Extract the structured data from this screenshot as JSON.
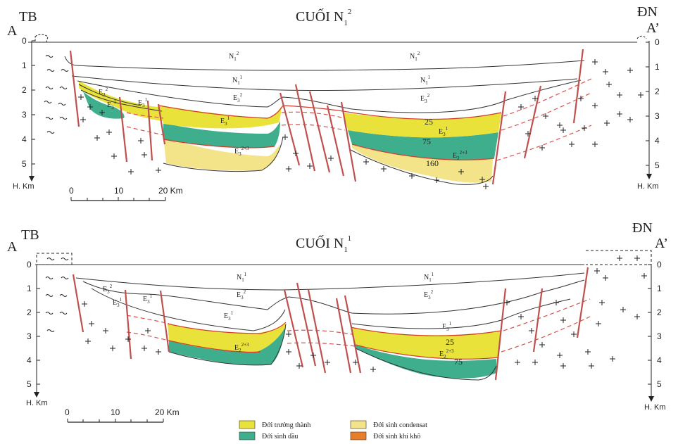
{
  "sections": [
    {
      "title_main": "CUỐI N",
      "title_sub": "1",
      "title_sup": "2",
      "left_letter": "A",
      "left_dir": "TB",
      "right_letter": "A’",
      "right_dir": "ĐN",
      "depth_ticks": [
        "0",
        "1",
        "2",
        "3",
        "4",
        "5"
      ],
      "depth_unit": "H. Km",
      "scale_labels": [
        "0",
        "10",
        "20 Km"
      ],
      "layers": [
        {
          "base": "N",
          "sub": "1",
          "sup": "2"
        },
        {
          "base": "N",
          "sub": "1",
          "sup": "2"
        },
        {
          "base": "N",
          "sub": "1",
          "sup": "1"
        },
        {
          "base": "N",
          "sub": "1",
          "sup": "1"
        },
        {
          "base": "E",
          "sub": "3",
          "sup": "2"
        },
        {
          "base": "E",
          "sub": "3",
          "sup": "2"
        },
        {
          "base": "E",
          "sub": "3",
          "sup": "2"
        },
        {
          "base": "E",
          "sub": "3",
          "sup": "1"
        },
        {
          "base": "E",
          "sub": "3",
          "sup": "1"
        },
        {
          "base": "E",
          "sub": "3",
          "sup": "1"
        },
        {
          "base": "E",
          "sub": "3",
          "sup": "1"
        },
        {
          "base": "E",
          "sub": "3",
          "sup": "2+3"
        },
        {
          "base": "E",
          "sub": "2",
          "sup": "2+3"
        }
      ],
      "isotherms": [
        "25",
        "75",
        "160"
      ]
    },
    {
      "title_main": "CUỐI N",
      "title_sub": "1",
      "title_sup": "1",
      "left_letter": "A",
      "left_dir": "TB",
      "right_letter": "A’",
      "right_dir": "ĐN",
      "depth_ticks": [
        "0",
        "1",
        "2",
        "3",
        "4",
        "5"
      ],
      "depth_unit": "H. Km",
      "scale_labels": [
        "0",
        "10",
        "20 Km"
      ],
      "layers": [
        {
          "base": "N",
          "sub": "1",
          "sup": "1"
        },
        {
          "base": "N",
          "sub": "1",
          "sup": "1"
        },
        {
          "base": "E",
          "sub": "3",
          "sup": "2"
        },
        {
          "base": "E",
          "sub": "3",
          "sup": "1"
        },
        {
          "base": "E",
          "sub": "3",
          "sup": "1"
        },
        {
          "base": "E",
          "sub": "3",
          "sup": "2"
        },
        {
          "base": "E",
          "sub": "3",
          "sup": "2"
        },
        {
          "base": "E",
          "sub": "3",
          "sup": "1"
        },
        {
          "base": "E",
          "sub": "3",
          "sup": "1"
        },
        {
          "base": "E",
          "sub": "2",
          "sup": "2+3"
        },
        {
          "base": "E",
          "sub": "2",
          "sup": "2+3"
        }
      ],
      "isotherms": [
        "25",
        "75"
      ]
    }
  ],
  "legend": [
    {
      "label": "Đới trưởng thành",
      "color": "#e8e23a"
    },
    {
      "label": "Đới sinh condensat",
      "color": "#f3e48a"
    },
    {
      "label": "Đới sinh dầu",
      "color": "#3fae8c"
    },
    {
      "label": "Đới sinh khí khô",
      "color": "#e87d2a"
    }
  ],
  "colors": {
    "mature": "#e8e23a",
    "oil": "#3fae8c",
    "condensate": "#f3e48a",
    "fault": "#c0504d",
    "isotherm": "#d43a2a"
  }
}
